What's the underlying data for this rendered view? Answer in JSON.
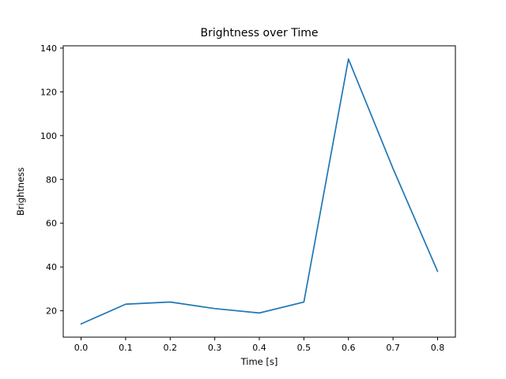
{
  "chart_data": {
    "type": "line",
    "title": "Brightness over Time",
    "xlabel": "Time [s]",
    "ylabel": "Brightness",
    "x": [
      0.0,
      0.1,
      0.2,
      0.3,
      0.4,
      0.5,
      0.6,
      0.7,
      0.8
    ],
    "y": [
      14,
      23,
      24,
      21,
      19,
      24,
      135,
      85,
      38
    ],
    "series_name": "Brightness",
    "line_color": "#1f77b4",
    "x_ticks": [
      "0.0",
      "0.1",
      "0.2",
      "0.3",
      "0.4",
      "0.5",
      "0.6",
      "0.7",
      "0.8"
    ],
    "x_tick_values": [
      0.0,
      0.1,
      0.2,
      0.3,
      0.4,
      0.5,
      0.6,
      0.7,
      0.8
    ],
    "y_ticks": [
      "20",
      "40",
      "60",
      "80",
      "100",
      "120",
      "140"
    ],
    "y_tick_values": [
      20,
      40,
      60,
      80,
      100,
      120,
      140
    ],
    "xlim": [
      -0.04,
      0.84
    ],
    "ylim": [
      7.95,
      141.05
    ],
    "grid": false,
    "legend": "none"
  }
}
